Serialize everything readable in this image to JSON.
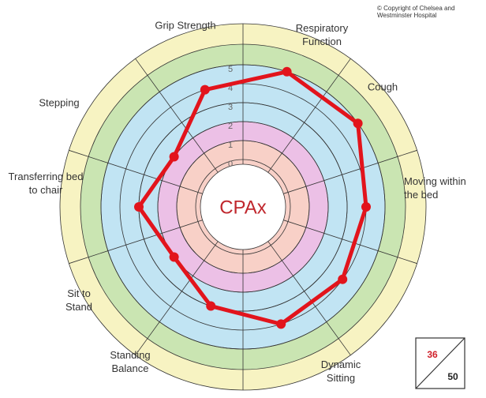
{
  "chart_data": {
    "type": "radar",
    "title": "CPAx",
    "copyright": "© Copyright of Chelsea and Westminster Hospital",
    "categories": [
      "Respiratory Function",
      "Cough",
      "Moving within the bed",
      null,
      "Dynamic Sitting",
      "Standing Balance",
      "Sit to Stand",
      "Transferring bed to chair",
      "Stepping",
      "Grip Strength"
    ],
    "series": [
      {
        "color": "#e2141c",
        "values": [
          5,
          5,
          4,
          4,
          4,
          3,
          2,
          3,
          2,
          4
        ]
      }
    ],
    "ylim": [
      0,
      5
    ],
    "yticks": [
      0,
      1,
      2,
      3,
      4,
      5
    ],
    "score": {
      "value": 36,
      "max": 50
    }
  }
}
